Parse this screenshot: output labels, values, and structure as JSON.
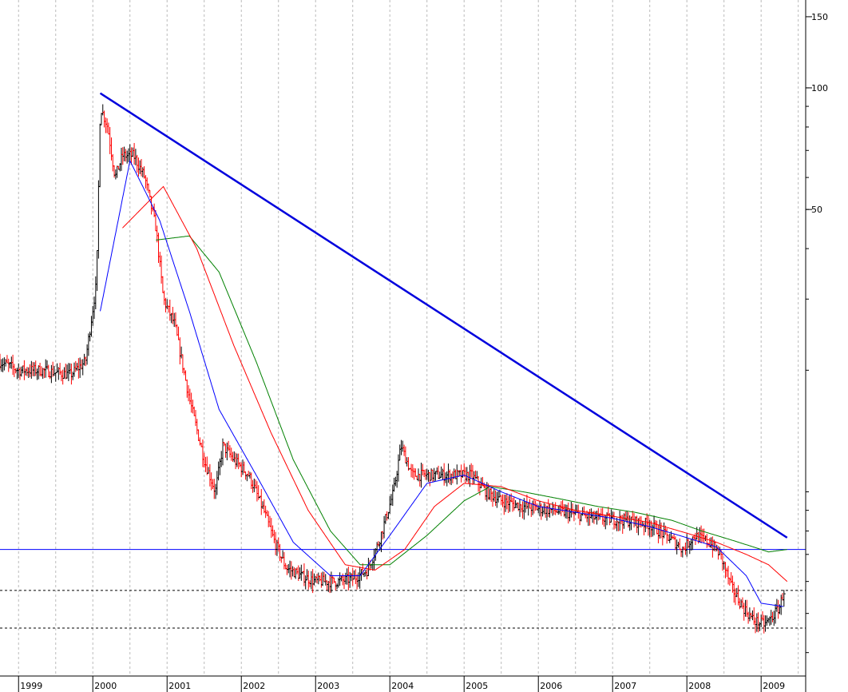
{
  "chart_data": {
    "type": "candlestick",
    "y_scale": "log",
    "ylim": [
      3.5,
      165
    ],
    "xlim": [
      1998.75,
      2009.6
    ],
    "grid": "vertical-dashed",
    "x_ticks": [
      "1999",
      "2000",
      "2001",
      "2002",
      "2003",
      "2004",
      "2005",
      "2006",
      "2007",
      "2008",
      "2009"
    ],
    "y_ticks": [
      150,
      100,
      50
    ],
    "colors": {
      "down_bar": "#ff0000",
      "up_bar": "#000000",
      "ma_short": "#0000ff",
      "ma_mid": "#ff0000",
      "ma_long": "#008000",
      "trendline": "#0000dd",
      "support_line": "#0000ff",
      "dashed_levels": "#000000",
      "grid": "#bbbbbb"
    },
    "trendline": {
      "from": [
        2000.1,
        97
      ],
      "to": [
        2009.35,
        7.7
      ]
    },
    "support_level": 7.2,
    "dashed_levels": [
      5.7,
      4.6
    ],
    "price_path": [
      [
        1998.75,
        21
      ],
      [
        1999.0,
        20
      ],
      [
        1999.3,
        20
      ],
      [
        1999.7,
        19.5
      ],
      [
        1999.9,
        21
      ],
      [
        2000.05,
        33
      ],
      [
        2000.1,
        90
      ],
      [
        2000.2,
        80
      ],
      [
        2000.3,
        60
      ],
      [
        2000.4,
        68
      ],
      [
        2000.55,
        68
      ],
      [
        2000.7,
        60
      ],
      [
        2000.85,
        45
      ],
      [
        2000.95,
        30
      ],
      [
        2001.1,
        26
      ],
      [
        2001.3,
        17
      ],
      [
        2001.5,
        12
      ],
      [
        2001.65,
        10
      ],
      [
        2001.75,
        13
      ],
      [
        2001.9,
        12
      ],
      [
        2002.1,
        11
      ],
      [
        2002.3,
        9
      ],
      [
        2002.45,
        7.5
      ],
      [
        2002.6,
        6.5
      ],
      [
        2002.8,
        6.2
      ],
      [
        2003.0,
        6.0
      ],
      [
        2003.3,
        6.0
      ],
      [
        2003.5,
        6.1
      ],
      [
        2003.7,
        6.4
      ],
      [
        2003.85,
        7.5
      ],
      [
        2004.05,
        10
      ],
      [
        2004.15,
        13
      ],
      [
        2004.3,
        11
      ],
      [
        2004.6,
        11
      ],
      [
        2005.0,
        11
      ],
      [
        2005.1,
        11
      ],
      [
        2005.3,
        10
      ],
      [
        2005.5,
        9.5
      ],
      [
        2005.8,
        9.2
      ],
      [
        2006.2,
        9.0
      ],
      [
        2006.5,
        8.8
      ],
      [
        2006.8,
        8.6
      ],
      [
        2007.2,
        8.5
      ],
      [
        2007.5,
        8.3
      ],
      [
        2007.8,
        7.6
      ],
      [
        2007.95,
        7.2
      ],
      [
        2008.1,
        7.8
      ],
      [
        2008.3,
        7.5
      ],
      [
        2008.45,
        7.0
      ],
      [
        2008.6,
        5.8
      ],
      [
        2008.75,
        5.2
      ],
      [
        2008.9,
        4.8
      ],
      [
        2009.05,
        4.7
      ],
      [
        2009.15,
        4.9
      ],
      [
        2009.25,
        5.2
      ],
      [
        2009.32,
        5.8
      ]
    ],
    "ma_short_path": [
      [
        2000.1,
        28
      ],
      [
        2000.5,
        66
      ],
      [
        2000.9,
        47
      ],
      [
        2001.3,
        28
      ],
      [
        2001.7,
        16
      ],
      [
        2002.2,
        11
      ],
      [
        2002.7,
        7.5
      ],
      [
        2003.2,
        6.2
      ],
      [
        2003.6,
        6.2
      ],
      [
        2004.0,
        7.8
      ],
      [
        2004.5,
        10.5
      ],
      [
        2005.0,
        11
      ],
      [
        2005.5,
        10
      ],
      [
        2006.0,
        9.2
      ],
      [
        2006.5,
        8.9
      ],
      [
        2007.0,
        8.6
      ],
      [
        2007.5,
        8.2
      ],
      [
        2008.0,
        7.7
      ],
      [
        2008.4,
        7.3
      ],
      [
        2008.8,
        6.2
      ],
      [
        2009.0,
        5.3
      ],
      [
        2009.3,
        5.2
      ]
    ],
    "ma_mid_path": [
      [
        2000.4,
        45
      ],
      [
        2000.95,
        57
      ],
      [
        2001.4,
        40
      ],
      [
        2001.9,
        23
      ],
      [
        2002.4,
        14
      ],
      [
        2002.9,
        9
      ],
      [
        2003.4,
        6.6
      ],
      [
        2003.8,
        6.4
      ],
      [
        2004.2,
        7.2
      ],
      [
        2004.6,
        9.2
      ],
      [
        2005.0,
        10.5
      ],
      [
        2005.5,
        10.3
      ],
      [
        2006.0,
        9.5
      ],
      [
        2006.5,
        9.0
      ],
      [
        2007.0,
        8.7
      ],
      [
        2007.5,
        8.4
      ],
      [
        2008.0,
        7.9
      ],
      [
        2008.4,
        7.5
      ],
      [
        2008.8,
        7.0
      ],
      [
        2009.1,
        6.6
      ],
      [
        2009.35,
        6.0
      ]
    ],
    "ma_long_path": [
      [
        2000.85,
        42
      ],
      [
        2001.3,
        43
      ],
      [
        2001.7,
        35
      ],
      [
        2002.2,
        21
      ],
      [
        2002.7,
        12
      ],
      [
        2003.2,
        8
      ],
      [
        2003.6,
        6.6
      ],
      [
        2004.0,
        6.6
      ],
      [
        2004.5,
        7.8
      ],
      [
        2005.0,
        9.5
      ],
      [
        2005.35,
        10.3
      ],
      [
        2005.8,
        10.0
      ],
      [
        2006.3,
        9.6
      ],
      [
        2006.8,
        9.2
      ],
      [
        2007.3,
        8.9
      ],
      [
        2007.8,
        8.5
      ],
      [
        2008.2,
        8.0
      ],
      [
        2008.6,
        7.6
      ],
      [
        2008.9,
        7.3
      ],
      [
        2009.1,
        7.1
      ],
      [
        2009.35,
        7.2
      ]
    ]
  }
}
